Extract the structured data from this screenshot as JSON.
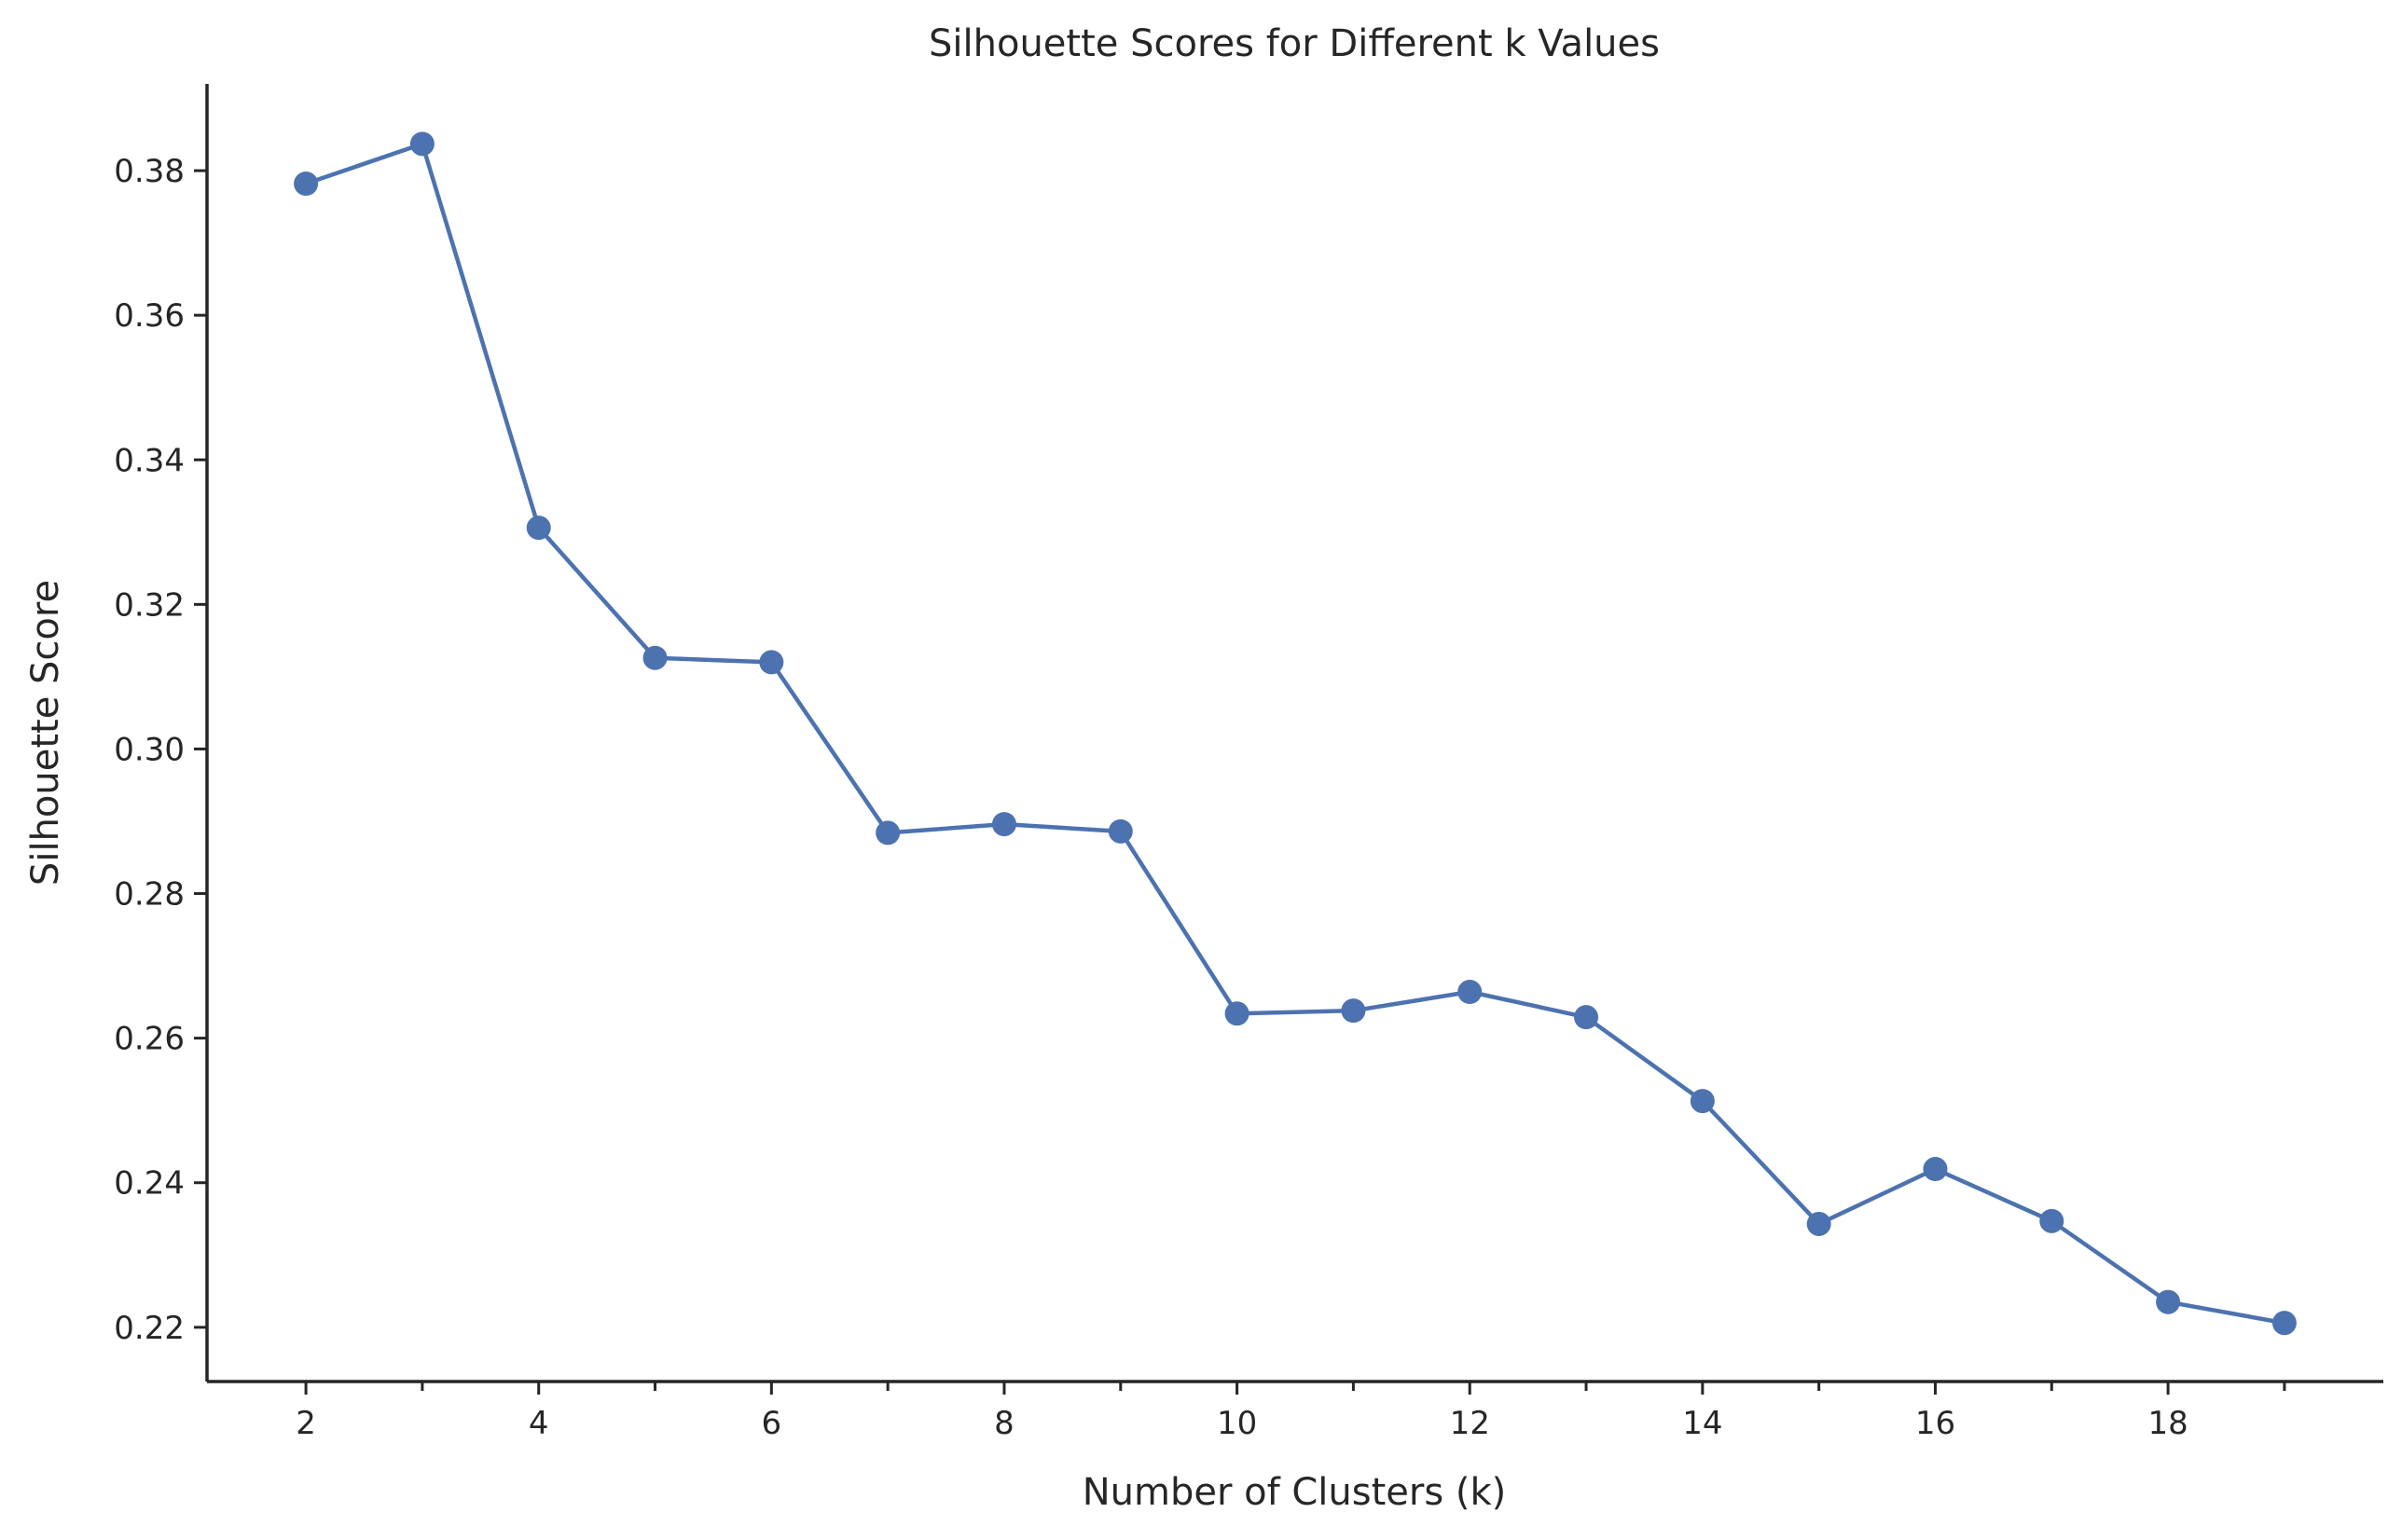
{
  "chart_data": {
    "type": "line",
    "title": "Silhouette Scores for Different k Values",
    "xlabel": "Number of Clusters (k)",
    "ylabel": "Silhouette Score",
    "series": [
      {
        "x": [
          2,
          3,
          4,
          5,
          6,
          7,
          8,
          9,
          10,
          11,
          12,
          13,
          14,
          15,
          16,
          17,
          18,
          19
        ],
        "values": [
          0.3782,
          0.3837,
          0.3306,
          0.3126,
          0.312,
          0.2884,
          0.2896,
          0.2886,
          0.2634,
          0.2638,
          0.2664,
          0.2629,
          0.2513,
          0.2343,
          0.2419,
          0.2347,
          0.2235,
          0.2206
        ],
        "color": "#4c72b0",
        "marker": "circle"
      }
    ],
    "xlim": [
      1.15,
      19.85
    ],
    "ylim": [
      0.2125,
      0.392
    ],
    "xticks_major": [
      2,
      4,
      6,
      8,
      10,
      12,
      14,
      16,
      18
    ],
    "xticks_major_labels": [
      "2",
      "4",
      "6",
      "8",
      "10",
      "12",
      "14",
      "16",
      "18"
    ],
    "xticks_minor": [
      3,
      5,
      7,
      9,
      11,
      13,
      15,
      17,
      19
    ],
    "yticks": [
      0.22,
      0.24,
      0.26,
      0.28,
      0.3,
      0.32,
      0.34,
      0.36,
      0.38
    ],
    "yticks_labels": [
      "0.22",
      "0.24",
      "0.26",
      "0.28",
      "0.30",
      "0.32",
      "0.34",
      "0.36",
      "0.38"
    ],
    "grid": false,
    "spines": "left-bottom"
  }
}
